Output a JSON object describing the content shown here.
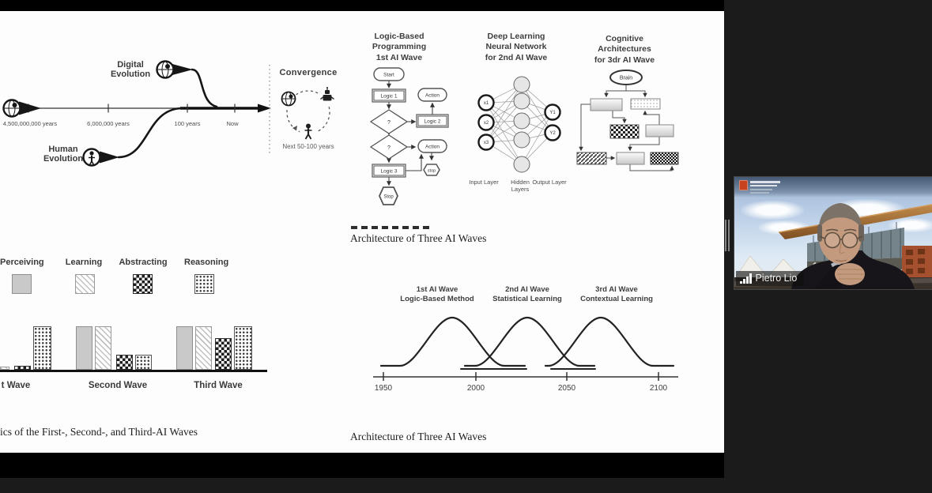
{
  "colors": {
    "app_background": "#1b1b1b",
    "letterbox": "#000000",
    "slide_background": "#fdfdfd",
    "name_tag_background": "rgba(15,15,15,0.62)",
    "cambridge_shield": "#c7431d"
  },
  "participant": {
    "name": "Pietro Lio"
  },
  "slide": {
    "evolution": {
      "digital_label": "Digital\nEvolution",
      "human_label": "Human\nEvolution",
      "ticks": [
        "4,500,000,000 years",
        "6,000,000 years",
        "100 years",
        "Now"
      ],
      "convergence_title": "Convergence",
      "convergence_caption": "Next 50-100 years"
    },
    "flowchart": {
      "title": "Logic-Based\nProgramming\n1st AI Wave",
      "nodes": {
        "start": "Start",
        "logic1": "Logic 1",
        "action_top": "Action",
        "q1": "?",
        "logic2": "Logic 2",
        "q2": "?",
        "action_mid": "Action",
        "logic3": "Logic 3",
        "stop_small": "stop",
        "stop": "Stop"
      }
    },
    "neural_network": {
      "title": "Deep Learning\nNeural Network\nfor 2nd AI Wave",
      "inputs": [
        "x1",
        "x2",
        "x3"
      ],
      "outputs": [
        "Y1",
        "Y2"
      ],
      "layer_labels": [
        "Input Layer",
        "Hidden\nLayers",
        "Output Layer"
      ]
    },
    "cognitive": {
      "title": "Cognitive\nArchitectures\nfor 3dr AI Wave",
      "root_node": "Brain"
    },
    "bar_chart": {
      "legend": [
        "Perceiving",
        "Learning",
        "Abstracting",
        "Reasoning"
      ],
      "group_labels": [
        "t Wave",
        "Second Wave",
        "Third Wave"
      ]
    },
    "bell_chart": {
      "heading": "Architecture of Three AI Waves",
      "wave_labels": [
        "1st AI Wave\nLogic-Based Method",
        "2nd AI Wave\nStatistical Learning",
        "3rd AI Wave\nContextual Learning"
      ],
      "x_ticks": [
        "1950",
        "2000",
        "2050",
        "2100"
      ]
    },
    "caption_left": "ics of the First-, Second-, and Third-AI Waves",
    "caption_right": "Architecture of Three AI Waves"
  },
  "chart_data": [
    {
      "type": "bar",
      "title": "ics of the First-, Second-, and Third-AI Waves",
      "categories": [
        "t Wave",
        "Second Wave",
        "Third Wave"
      ],
      "series": [
        {
          "name": "Perceiving",
          "values": [
            null,
            100,
            100
          ]
        },
        {
          "name": "Learning",
          "values": [
            7,
            100,
            100
          ]
        },
        {
          "name": "Abstracting",
          "values": [
            9,
            35,
            73
          ]
        },
        {
          "name": "Reasoning",
          "values": [
            100,
            35,
            100
          ]
        }
      ],
      "ylim": [
        0,
        100
      ],
      "grid": false,
      "legend_position": "top",
      "note": "left edge of first group cropped by screen share"
    },
    {
      "type": "line",
      "title": "Architecture of Three AI Waves",
      "x_ticks": [
        1950,
        2000,
        2050,
        2100
      ],
      "series": [
        {
          "name": "1st AI Wave Logic-Based Method",
          "shape": "bell",
          "peak_x": 1988,
          "peak_height": 1
        },
        {
          "name": "2nd AI Wave Statistical Learning",
          "shape": "bell",
          "peak_x": 2028,
          "peak_height": 1
        },
        {
          "name": "3rd AI Wave Contextual Learning",
          "shape": "bell",
          "peak_x": 2068,
          "peak_height": 1
        }
      ]
    }
  ]
}
